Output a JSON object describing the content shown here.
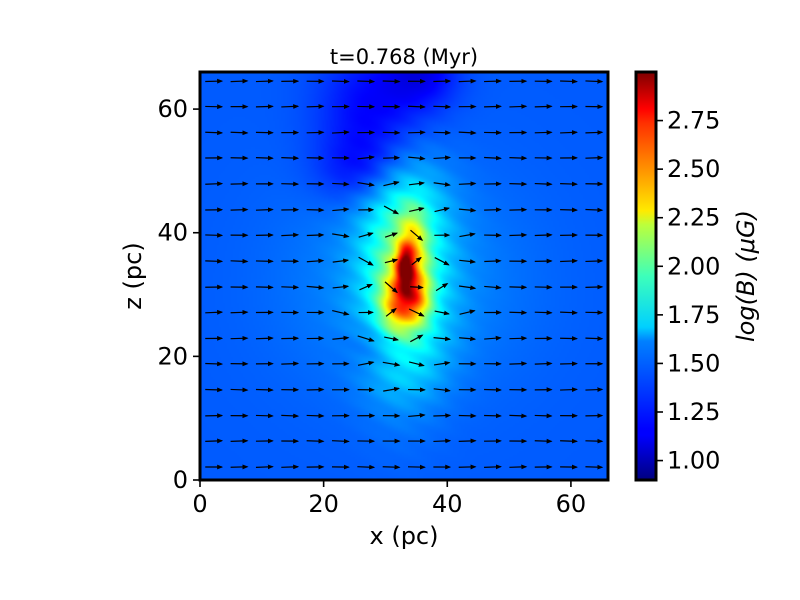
{
  "chart_data": {
    "type": "heatmap",
    "title": "t=0.768 (Myr)",
    "xlabel": "x (pc)",
    "ylabel": "z (pc)",
    "xlim": [
      0,
      66
    ],
    "ylim": [
      0,
      66
    ],
    "x_ticks": [
      0,
      20,
      40,
      60
    ],
    "y_ticks": [
      0,
      20,
      40,
      60
    ],
    "colorbar": {
      "label": "log(B) (μG)",
      "colormap": "jet",
      "range": [
        0.9,
        3.0
      ],
      "ticks": [
        1.0,
        1.25,
        1.5,
        1.75,
        2.0,
        2.25,
        2.5,
        2.75
      ],
      "tick_labels": [
        "1.00",
        "1.25",
        "1.50",
        "1.75",
        "2.00",
        "2.25",
        "2.50",
        "2.75"
      ]
    },
    "field": {
      "background_value": 1.35,
      "features": [
        {
          "x": 33,
          "z": 33,
          "sx": 4.5,
          "sz": 11,
          "peak": 0.45
        },
        {
          "x": 33.5,
          "z": 31,
          "sx": 2.2,
          "sz": 4.5,
          "peak": 0.55
        },
        {
          "x": 33.2,
          "z": 34.5,
          "sx": 0.9,
          "sz": 2.2,
          "peak": 0.85
        },
        {
          "x": 34.5,
          "z": 39,
          "sx": 1.5,
          "sz": 3.5,
          "peak": 0.35
        },
        {
          "x": 31.5,
          "z": 28,
          "sx": 1.8,
          "sz": 3,
          "peak": 0.35
        },
        {
          "x": 35,
          "z": 29.5,
          "sx": 1.6,
          "sz": 2.5,
          "peak": 0.35
        },
        {
          "x": 33,
          "z": 32,
          "sx": 13,
          "sz": 12,
          "peak": 0.12
        },
        {
          "x": 33,
          "z": 44,
          "sx": 5,
          "sz": 6,
          "peak": 0.1
        },
        {
          "x": 33,
          "z": 20,
          "sx": 5,
          "sz": 5,
          "peak": 0.08
        },
        {
          "x": 28,
          "z": 60,
          "sx": 6,
          "sz": 7,
          "peak": -0.2
        },
        {
          "x": 36,
          "z": 66,
          "sx": 4,
          "sz": 4,
          "peak": -0.2
        },
        {
          "x": 26,
          "z": 50,
          "sx": 5,
          "sz": 4,
          "peak": -0.15
        },
        {
          "x": 30,
          "z": 22,
          "sx": 4,
          "sz": 3,
          "peak": -0.15
        }
      ]
    },
    "vectors": {
      "x_positions": [
        2.2,
        6.3,
        10.4,
        14.5,
        18.6,
        22.7,
        26.8,
        30.9,
        35.0,
        39.1,
        43.2,
        47.3,
        51.4,
        55.5,
        59.6,
        63.7
      ],
      "z_positions": [
        2.1,
        6.3,
        10.4,
        14.6,
        18.8,
        22.9,
        27.1,
        31.2,
        35.4,
        39.6,
        43.7,
        47.9,
        52.1,
        56.2,
        60.4,
        64.5
      ],
      "direction": "+x",
      "disturbed_region": {
        "x_center": 33,
        "z_center": 33,
        "x_halfwidth": 9,
        "z_halfwidth": 14
      }
    }
  }
}
